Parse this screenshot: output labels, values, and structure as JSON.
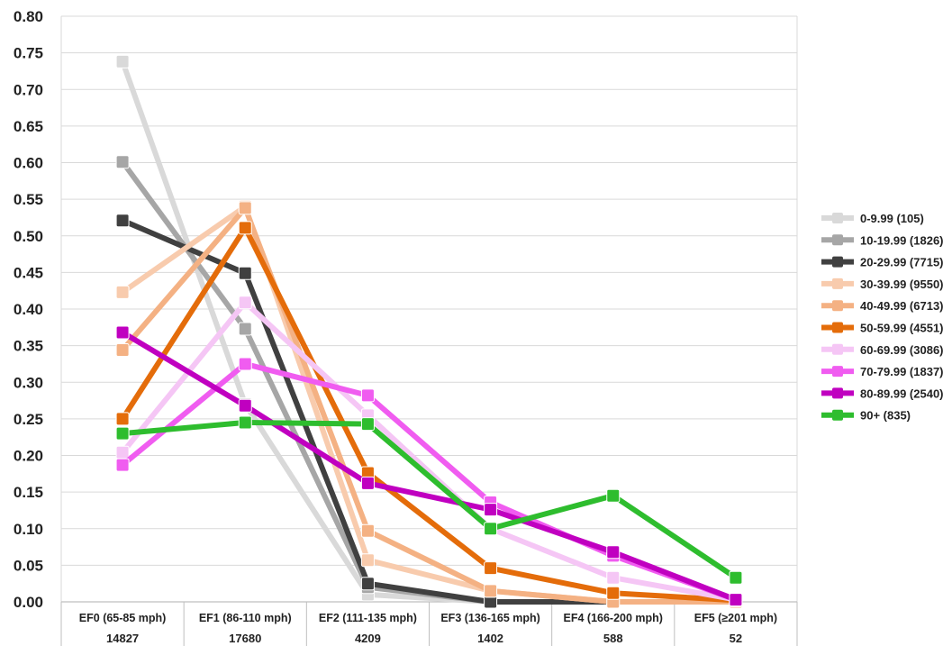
{
  "chart_data": {
    "type": "line",
    "categories": [
      "EF0 (65-85 mph)",
      "EF1 (86-110 mph)",
      "EF2 (111-135 mph)",
      "EF3 (136-165 mph)",
      "EF4 (166-200 mph)",
      "EF5 (≥201 mph)"
    ],
    "category_counts": [
      "14827",
      "17680",
      "4209",
      "1402",
      "588",
      "52"
    ],
    "ylim": [
      0,
      0.8
    ],
    "yticks": [
      "0.00",
      "0.05",
      "0.10",
      "0.15",
      "0.20",
      "0.25",
      "0.30",
      "0.35",
      "0.40",
      "0.45",
      "0.50",
      "0.55",
      "0.60",
      "0.65",
      "0.70",
      "0.75",
      "0.80"
    ],
    "grid": "horizontal",
    "legend_position": "right",
    "series": [
      {
        "name": "0-9.99 (105)",
        "color": "#d9d9d9",
        "values": [
          0.738,
          0.27,
          0.01,
          0.0,
          0.0,
          0.0
        ]
      },
      {
        "name": "10-19.99 (1826)",
        "color": "#a6a6a6",
        "values": [
          0.601,
          0.373,
          0.02,
          0.0,
          0.0,
          0.0
        ]
      },
      {
        "name": "20-29.99 (7715)",
        "color": "#404040",
        "values": [
          0.521,
          0.449,
          0.025,
          0.0,
          0.0,
          0.0
        ]
      },
      {
        "name": "30-39.99 (9550)",
        "color": "#f8cbad",
        "values": [
          0.423,
          0.54,
          0.057,
          0.015,
          0.0,
          0.0
        ]
      },
      {
        "name": "40-49.99 (6713)",
        "color": "#f4b183",
        "values": [
          0.344,
          0.538,
          0.097,
          0.015,
          0.0,
          0.0
        ]
      },
      {
        "name": "50-59.99 (4551)",
        "color": "#e46c0a",
        "values": [
          0.25,
          0.511,
          0.176,
          0.046,
          0.012,
          0.002
        ]
      },
      {
        "name": "60-69.99 (3086)",
        "color": "#f5c6f5",
        "values": [
          0.204,
          0.409,
          0.255,
          0.1,
          0.033,
          0.003
        ]
      },
      {
        "name": "70-79.99 (1837)",
        "color": "#f05cf0",
        "values": [
          0.187,
          0.325,
          0.282,
          0.136,
          0.063,
          0.003
        ]
      },
      {
        "name": "80-89.99 (2540)",
        "color": "#c000c0",
        "values": [
          0.368,
          0.268,
          0.162,
          0.126,
          0.068,
          0.003
        ]
      },
      {
        "name": "90+ (835)",
        "color": "#2ebd2e",
        "values": [
          0.23,
          0.245,
          0.243,
          0.1,
          0.145,
          0.033
        ]
      }
    ]
  }
}
